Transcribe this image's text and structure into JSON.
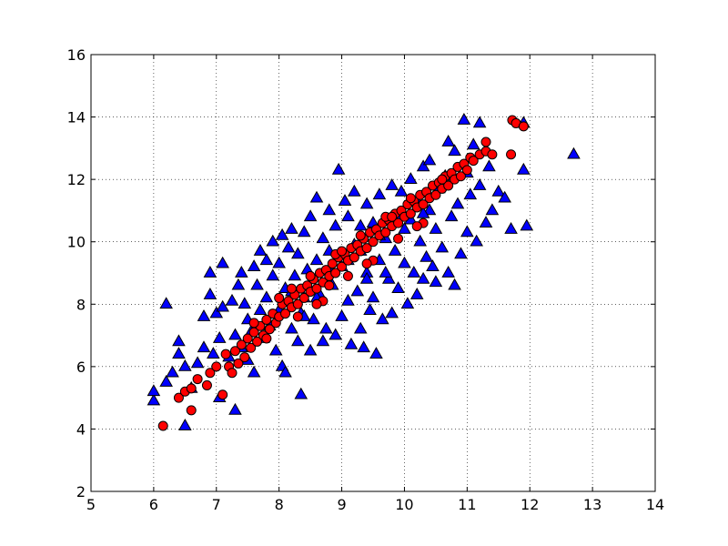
{
  "chart_data": {
    "type": "scatter",
    "title": "",
    "xlabel": "",
    "ylabel": "",
    "xlim": [
      5,
      14
    ],
    "ylim": [
      2,
      16
    ],
    "x_ticks": [
      5,
      6,
      7,
      8,
      9,
      10,
      11,
      12,
      13,
      14
    ],
    "y_ticks": [
      2,
      4,
      6,
      8,
      10,
      12,
      14,
      16
    ],
    "x_tick_labels": [
      "5",
      "6",
      "7",
      "8",
      "9",
      "10",
      "11",
      "12",
      "13",
      "14"
    ],
    "y_tick_labels": [
      "2",
      "4",
      "6",
      "8",
      "10",
      "12",
      "14",
      "16"
    ],
    "grid": true,
    "legend": null,
    "series": [
      {
        "marker": "triangle",
        "color": "#0000ff",
        "points": [
          [
            6.0,
            4.9
          ],
          [
            6.0,
            5.2
          ],
          [
            6.2,
            5.5
          ],
          [
            6.2,
            8.0
          ],
          [
            6.3,
            5.8
          ],
          [
            6.4,
            6.4
          ],
          [
            6.4,
            6.8
          ],
          [
            6.5,
            6.0
          ],
          [
            6.5,
            4.1
          ],
          [
            6.6,
            5.3
          ],
          [
            6.7,
            6.1
          ],
          [
            6.8,
            6.6
          ],
          [
            6.8,
            7.6
          ],
          [
            6.9,
            8.3
          ],
          [
            6.9,
            9.0
          ],
          [
            6.95,
            6.4
          ],
          [
            7.0,
            7.7
          ],
          [
            7.05,
            6.9
          ],
          [
            7.05,
            5.0
          ],
          [
            7.1,
            9.3
          ],
          [
            7.1,
            7.9
          ],
          [
            7.2,
            6.3
          ],
          [
            7.25,
            8.1
          ],
          [
            7.3,
            4.6
          ],
          [
            7.3,
            7.0
          ],
          [
            7.35,
            8.6
          ],
          [
            7.4,
            9.0
          ],
          [
            7.4,
            6.6
          ],
          [
            7.45,
            8.0
          ],
          [
            7.5,
            7.5
          ],
          [
            7.5,
            6.2
          ],
          [
            7.55,
            7.1
          ],
          [
            7.6,
            9.2
          ],
          [
            7.6,
            5.8
          ],
          [
            7.65,
            8.6
          ],
          [
            7.7,
            9.7
          ],
          [
            7.7,
            7.8
          ],
          [
            7.75,
            6.9
          ],
          [
            7.8,
            9.4
          ],
          [
            7.8,
            8.2
          ],
          [
            7.85,
            7.3
          ],
          [
            7.9,
            8.9
          ],
          [
            7.9,
            10.0
          ],
          [
            7.95,
            6.5
          ],
          [
            8.0,
            7.8
          ],
          [
            8.0,
            9.3
          ],
          [
            8.05,
            10.2
          ],
          [
            8.05,
            6.0
          ],
          [
            8.1,
            8.5
          ],
          [
            8.1,
            5.8
          ],
          [
            8.15,
            9.8
          ],
          [
            8.2,
            7.2
          ],
          [
            8.2,
            10.4
          ],
          [
            8.25,
            8.9
          ],
          [
            8.3,
            6.8
          ],
          [
            8.3,
            9.6
          ],
          [
            8.35,
            5.1
          ],
          [
            8.35,
            7.7
          ],
          [
            8.4,
            10.3
          ],
          [
            8.4,
            8.2
          ],
          [
            8.45,
            9.1
          ],
          [
            8.5,
            6.5
          ],
          [
            8.5,
            10.8
          ],
          [
            8.55,
            7.5
          ],
          [
            8.6,
            9.4
          ],
          [
            8.6,
            11.4
          ],
          [
            8.65,
            8.3
          ],
          [
            8.7,
            6.8
          ],
          [
            8.7,
            10.1
          ],
          [
            8.75,
            7.2
          ],
          [
            8.8,
            9.7
          ],
          [
            8.8,
            11.0
          ],
          [
            8.85,
            8.6
          ],
          [
            8.9,
            7.0
          ],
          [
            8.9,
            10.5
          ],
          [
            8.95,
            12.3
          ],
          [
            9.0,
            9.2
          ],
          [
            9.0,
            7.6
          ],
          [
            9.05,
            11.3
          ],
          [
            9.1,
            8.1
          ],
          [
            9.1,
            10.8
          ],
          [
            9.15,
            6.7
          ],
          [
            9.2,
            9.9
          ],
          [
            9.2,
            11.6
          ],
          [
            9.25,
            8.4
          ],
          [
            9.3,
            7.2
          ],
          [
            9.3,
            10.5
          ],
          [
            9.35,
            6.6
          ],
          [
            9.4,
            11.2
          ],
          [
            9.4,
            9.0
          ],
          [
            9.45,
            7.8
          ],
          [
            9.5,
            10.6
          ],
          [
            9.5,
            8.2
          ],
          [
            9.55,
            6.4
          ],
          [
            9.6,
            11.5
          ],
          [
            9.6,
            9.4
          ],
          [
            9.65,
            7.5
          ],
          [
            9.7,
            10.1
          ],
          [
            9.75,
            8.8
          ],
          [
            9.8,
            11.8
          ],
          [
            9.8,
            7.7
          ],
          [
            9.85,
            9.7
          ],
          [
            9.9,
            8.5
          ],
          [
            9.9,
            10.8
          ],
          [
            9.95,
            11.6
          ],
          [
            10.0,
            9.3
          ],
          [
            10.05,
            8.0
          ],
          [
            10.1,
            10.7
          ],
          [
            10.1,
            12.0
          ],
          [
            10.15,
            9.0
          ],
          [
            10.2,
            8.3
          ],
          [
            10.2,
            11.3
          ],
          [
            10.25,
            10.0
          ],
          [
            10.3,
            12.4
          ],
          [
            10.3,
            8.8
          ],
          [
            10.35,
            9.5
          ],
          [
            10.4,
            11.0
          ],
          [
            10.4,
            12.6
          ],
          [
            10.45,
            9.2
          ],
          [
            10.5,
            10.4
          ],
          [
            10.5,
            8.7
          ],
          [
            10.55,
            11.7
          ],
          [
            10.6,
            9.8
          ],
          [
            10.65,
            12.1
          ],
          [
            10.7,
            13.2
          ],
          [
            10.7,
            9.0
          ],
          [
            10.75,
            10.8
          ],
          [
            10.8,
            12.9
          ],
          [
            10.8,
            8.6
          ],
          [
            10.85,
            11.2
          ],
          [
            10.9,
            9.6
          ],
          [
            10.95,
            13.9
          ],
          [
            11.0,
            10.3
          ],
          [
            11.0,
            12.2
          ],
          [
            11.05,
            11.5
          ],
          [
            11.1,
            13.1
          ],
          [
            11.15,
            10.0
          ],
          [
            11.2,
            13.8
          ],
          [
            11.2,
            11.8
          ],
          [
            11.3,
            10.6
          ],
          [
            11.35,
            12.4
          ],
          [
            11.4,
            11.0
          ],
          [
            11.5,
            11.6
          ],
          [
            11.6,
            11.4
          ],
          [
            11.7,
            10.4
          ],
          [
            11.9,
            12.3
          ],
          [
            11.9,
            13.8
          ],
          [
            11.95,
            10.5
          ],
          [
            12.7,
            12.8
          ],
          [
            9.3,
            9.7
          ],
          [
            9.6,
            10.2
          ],
          [
            8.6,
            8.2
          ],
          [
            8.8,
            9.1
          ],
          [
            9.4,
            8.8
          ],
          [
            10.0,
            10.4
          ],
          [
            9.1,
            9.4
          ],
          [
            8.4,
            7.6
          ],
          [
            9.7,
            9.0
          ],
          [
            10.3,
            10.9
          ],
          [
            8.2,
            8.4
          ]
        ]
      },
      {
        "marker": "circle",
        "color": "#ff0000",
        "points": [
          [
            6.15,
            4.1
          ],
          [
            6.4,
            5.0
          ],
          [
            6.5,
            5.2
          ],
          [
            6.6,
            4.6
          ],
          [
            6.6,
            5.3
          ],
          [
            6.7,
            5.6
          ],
          [
            6.85,
            5.4
          ],
          [
            6.9,
            5.8
          ],
          [
            7.0,
            6.0
          ],
          [
            7.1,
            5.1
          ],
          [
            7.15,
            6.4
          ],
          [
            7.2,
            6.0
          ],
          [
            7.25,
            5.8
          ],
          [
            7.3,
            6.5
          ],
          [
            7.35,
            6.1
          ],
          [
            7.4,
            6.7
          ],
          [
            7.45,
            6.3
          ],
          [
            7.5,
            6.9
          ],
          [
            7.55,
            6.6
          ],
          [
            7.6,
            7.1
          ],
          [
            7.65,
            6.8
          ],
          [
            7.7,
            7.3
          ],
          [
            7.75,
            7.0
          ],
          [
            7.8,
            7.5
          ],
          [
            7.85,
            7.2
          ],
          [
            7.9,
            7.7
          ],
          [
            7.95,
            7.4
          ],
          [
            8.0,
            7.6
          ],
          [
            8.05,
            8.0
          ],
          [
            8.1,
            7.7
          ],
          [
            8.15,
            8.1
          ],
          [
            8.2,
            7.9
          ],
          [
            8.25,
            8.3
          ],
          [
            8.3,
            8.0
          ],
          [
            8.35,
            8.5
          ],
          [
            8.4,
            8.2
          ],
          [
            8.45,
            8.6
          ],
          [
            8.5,
            8.4
          ],
          [
            8.55,
            8.8
          ],
          [
            8.6,
            8.5
          ],
          [
            8.65,
            9.0
          ],
          [
            8.7,
            8.7
          ],
          [
            8.75,
            9.1
          ],
          [
            8.8,
            8.9
          ],
          [
            8.85,
            9.3
          ],
          [
            8.9,
            9.0
          ],
          [
            8.95,
            9.5
          ],
          [
            9.0,
            9.2
          ],
          [
            9.05,
            9.6
          ],
          [
            9.1,
            9.4
          ],
          [
            9.15,
            9.8
          ],
          [
            9.2,
            9.5
          ],
          [
            9.25,
            9.9
          ],
          [
            9.3,
            9.7
          ],
          [
            9.35,
            10.1
          ],
          [
            9.4,
            9.8
          ],
          [
            9.45,
            10.3
          ],
          [
            9.5,
            10.0
          ],
          [
            9.55,
            10.4
          ],
          [
            9.6,
            10.2
          ],
          [
            9.65,
            10.6
          ],
          [
            9.7,
            10.3
          ],
          [
            9.75,
            10.7
          ],
          [
            9.8,
            10.5
          ],
          [
            9.85,
            10.9
          ],
          [
            9.9,
            10.6
          ],
          [
            9.95,
            11.0
          ],
          [
            10.0,
            10.8
          ],
          [
            10.05,
            11.2
          ],
          [
            10.1,
            10.9
          ],
          [
            10.15,
            11.3
          ],
          [
            10.2,
            11.1
          ],
          [
            10.25,
            11.5
          ],
          [
            10.3,
            11.2
          ],
          [
            10.35,
            11.6
          ],
          [
            10.4,
            11.4
          ],
          [
            10.45,
            11.8
          ],
          [
            10.5,
            11.5
          ],
          [
            10.55,
            11.9
          ],
          [
            10.6,
            11.7
          ],
          [
            10.65,
            12.1
          ],
          [
            10.7,
            11.8
          ],
          [
            10.75,
            12.2
          ],
          [
            10.8,
            12.0
          ],
          [
            10.85,
            12.4
          ],
          [
            10.9,
            12.1
          ],
          [
            10.95,
            12.5
          ],
          [
            11.0,
            12.3
          ],
          [
            11.05,
            12.7
          ],
          [
            11.1,
            12.6
          ],
          [
            11.2,
            12.8
          ],
          [
            11.3,
            13.2
          ],
          [
            11.3,
            12.9
          ],
          [
            11.4,
            12.8
          ],
          [
            11.7,
            12.8
          ],
          [
            11.72,
            13.9
          ],
          [
            11.78,
            13.8
          ],
          [
            11.9,
            13.7
          ],
          [
            8.0,
            8.2
          ],
          [
            8.3,
            7.6
          ],
          [
            8.5,
            8.9
          ],
          [
            8.7,
            8.1
          ],
          [
            8.9,
            9.6
          ],
          [
            9.1,
            8.9
          ],
          [
            9.3,
            10.2
          ],
          [
            9.5,
            9.4
          ],
          [
            9.7,
            10.8
          ],
          [
            9.9,
            10.1
          ],
          [
            10.1,
            11.4
          ],
          [
            10.3,
            10.6
          ],
          [
            7.8,
            6.9
          ],
          [
            8.2,
            8.5
          ],
          [
            8.6,
            8.0
          ],
          [
            9.0,
            9.7
          ],
          [
            9.4,
            9.3
          ],
          [
            9.8,
            10.8
          ],
          [
            10.2,
            10.5
          ],
          [
            10.6,
            12.0
          ],
          [
            7.6,
            7.4
          ],
          [
            8.8,
            8.6
          ]
        ]
      }
    ]
  }
}
